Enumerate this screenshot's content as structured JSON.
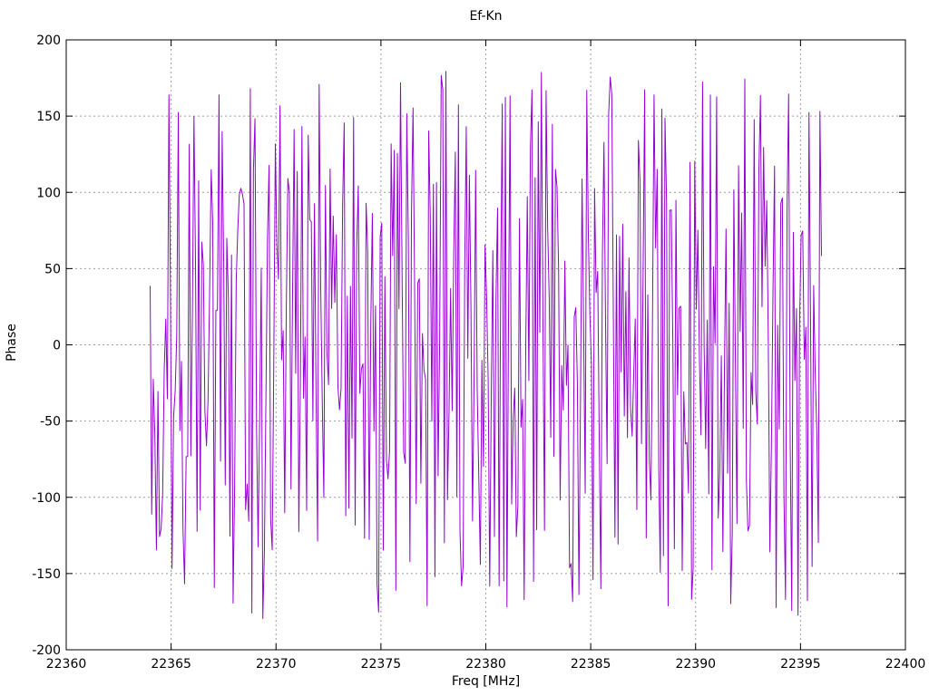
{
  "page": {
    "background": "#ffffff"
  },
  "chart_data": {
    "type": "line",
    "title": "Ef-Kn",
    "xlabel": "Freq [MHz]",
    "ylabel": "Phase",
    "xlim": [
      22360,
      22400
    ],
    "ylim": [
      -200,
      200
    ],
    "xticks": [
      22360,
      22365,
      22370,
      22375,
      22380,
      22385,
      22390,
      22395,
      22400
    ],
    "yticks": [
      -200,
      -150,
      -100,
      -50,
      0,
      50,
      100,
      150,
      200
    ],
    "grid": true,
    "grid_color": "#9e9e9e",
    "axis_color": "#000000",
    "background_color": "#ffffff",
    "legend_position": "none",
    "series": [
      {
        "name": "Ef-Kn phase",
        "color": "#9400d3",
        "line_width": 1,
        "x_start": 22364.0,
        "x_end": 22396.0,
        "n_points": 430,
        "y_min": -180,
        "y_max": 180,
        "pattern": "wrapped-random-phase-noise (uniform between -180 and 180 deg)",
        "seed": 1234567
      }
    ]
  }
}
